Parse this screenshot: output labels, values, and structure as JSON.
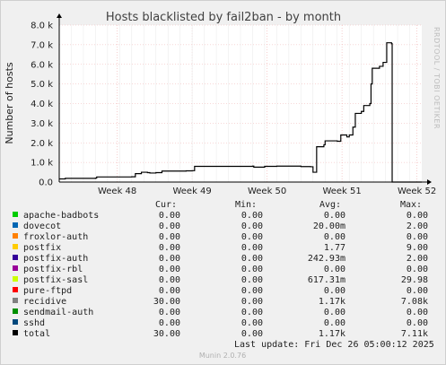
{
  "chart_data": {
    "type": "line",
    "title": "Hosts blacklisted by fail2ban - by month",
    "ylabel": "Number of hosts",
    "ylim": [
      0,
      8000
    ],
    "yticks": [
      {
        "v": 0,
        "label": "0.0"
      },
      {
        "v": 1000,
        "label": "1.0 k"
      },
      {
        "v": 2000,
        "label": "2.0 k"
      },
      {
        "v": 3000,
        "label": "3.0 k"
      },
      {
        "v": 4000,
        "label": "4.0 k"
      },
      {
        "v": 5000,
        "label": "5.0 k"
      },
      {
        "v": 6000,
        "label": "6.0 k"
      },
      {
        "v": 7000,
        "label": "7.0 k"
      },
      {
        "v": 8000,
        "label": "8.0 k"
      }
    ],
    "xlim": [
      0,
      30
    ],
    "xticks": [
      {
        "x": 4.8,
        "label": "Week 48"
      },
      {
        "x": 11.0,
        "label": "Week 49"
      },
      {
        "x": 17.2,
        "label": "Week 50"
      },
      {
        "x": 23.4,
        "label": "Week 51"
      },
      {
        "x": 29.6,
        "label": "Week 52"
      }
    ],
    "grid": true,
    "series": [
      {
        "name": "total",
        "color": "#000000",
        "points": [
          [
            0.0,
            160
          ],
          [
            0.5,
            190
          ],
          [
            3.0,
            200
          ],
          [
            3.1,
            260
          ],
          [
            6.0,
            270
          ],
          [
            6.3,
            430
          ],
          [
            6.8,
            500
          ],
          [
            7.3,
            480
          ],
          [
            7.5,
            460
          ],
          [
            8.0,
            480
          ],
          [
            8.5,
            560
          ],
          [
            10.5,
            570
          ],
          [
            11.0,
            580
          ],
          [
            11.2,
            800
          ],
          [
            16.0,
            810
          ],
          [
            16.1,
            760
          ],
          [
            16.6,
            760
          ],
          [
            17.0,
            800
          ],
          [
            18.0,
            810
          ],
          [
            20.0,
            790
          ],
          [
            20.8,
            780
          ],
          [
            21.0,
            500
          ],
          [
            21.3,
            1800
          ],
          [
            21.9,
            1900
          ],
          [
            22.0,
            2100
          ],
          [
            23.0,
            2080
          ],
          [
            23.3,
            2400
          ],
          [
            23.8,
            2300
          ],
          [
            24.0,
            2400
          ],
          [
            24.3,
            2800
          ],
          [
            24.5,
            3500
          ],
          [
            25.0,
            3600
          ],
          [
            25.2,
            3900
          ],
          [
            25.7,
            4000
          ],
          [
            25.8,
            5000
          ],
          [
            25.9,
            5800
          ],
          [
            26.5,
            5900
          ],
          [
            26.8,
            6100
          ],
          [
            27.1,
            7100
          ],
          [
            27.5,
            7050
          ],
          [
            27.55,
            0
          ],
          [
            30.0,
            0
          ]
        ]
      }
    ]
  },
  "side_label": "RRDTOOL / TOBI OETIKER",
  "legend": {
    "headers": {
      "cur": "Cur:",
      "min": "Min:",
      "avg": "Avg:",
      "max": "Max:"
    },
    "rows": [
      {
        "name": "apache-badbots",
        "color": "#00cc00",
        "cur": "0.00",
        "min": "0.00",
        "avg": "0.00",
        "max": "0.00"
      },
      {
        "name": "dovecot",
        "color": "#0066b3",
        "cur": "0.00",
        "min": "0.00",
        "avg": "20.00m",
        "max": "2.00"
      },
      {
        "name": "froxlor-auth",
        "color": "#ff8000",
        "cur": "0.00",
        "min": "0.00",
        "avg": "0.00",
        "max": "0.00"
      },
      {
        "name": "postfix",
        "color": "#ffcc00",
        "cur": "0.00",
        "min": "0.00",
        "avg": "1.77",
        "max": "9.00"
      },
      {
        "name": "postfix-auth",
        "color": "#330099",
        "cur": "0.00",
        "min": "0.00",
        "avg": "242.93m",
        "max": "2.00"
      },
      {
        "name": "postfix-rbl",
        "color": "#990099",
        "cur": "0.00",
        "min": "0.00",
        "avg": "0.00",
        "max": "0.00"
      },
      {
        "name": "postfix-sasl",
        "color": "#ccff00",
        "cur": "0.00",
        "min": "0.00",
        "avg": "617.31m",
        "max": "29.98"
      },
      {
        "name": "pure-ftpd",
        "color": "#ff0000",
        "cur": "0.00",
        "min": "0.00",
        "avg": "0.00",
        "max": "0.00"
      },
      {
        "name": "recidive",
        "color": "#808080",
        "cur": "30.00",
        "min": "0.00",
        "avg": "1.17k",
        "max": "7.08k"
      },
      {
        "name": "sendmail-auth",
        "color": "#008f00",
        "cur": "0.00",
        "min": "0.00",
        "avg": "0.00",
        "max": "0.00"
      },
      {
        "name": "sshd",
        "color": "#00487d",
        "cur": "0.00",
        "min": "0.00",
        "avg": "0.00",
        "max": "0.00"
      },
      {
        "name": "total",
        "color": "#000000",
        "cur": "30.00",
        "min": "0.00",
        "avg": "1.17k",
        "max": "7.11k"
      }
    ]
  },
  "last_update": "Last update: Fri Dec 26 05:00:12 2025",
  "footer": "Munin 2.0.76"
}
